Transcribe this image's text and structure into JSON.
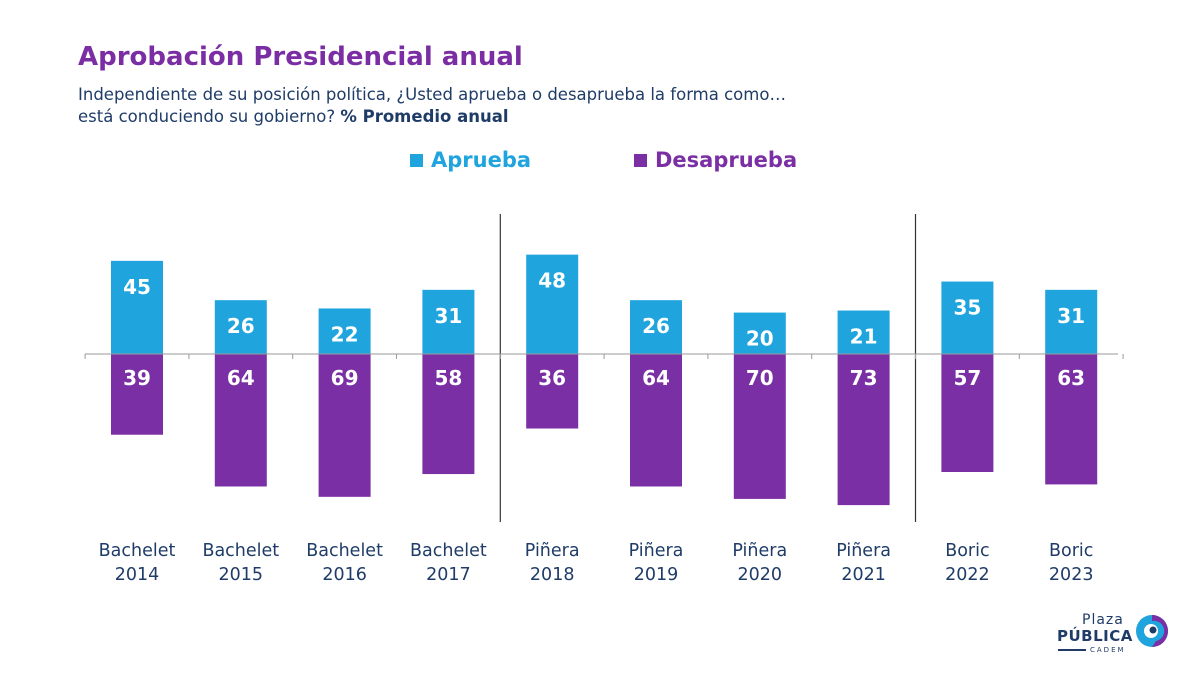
{
  "title": "Aprobación Presidencial anual",
  "subtitle_line1": "Independiente de su posición política, ¿Usted aprueba o desaprueba la forma como…",
  "subtitle_line2": "está conduciendo su gobierno?",
  "subtitle_bold": "% Promedio anual",
  "legend": [
    {
      "label": "Aprueba",
      "color": "#1fa4dd"
    },
    {
      "label": "Desaprueba",
      "color": "#7a2fa4"
    }
  ],
  "logo": {
    "line1": "Plaza",
    "line2": "PÚBLICA",
    "line3": "CADEM"
  },
  "chart_data": {
    "type": "bar",
    "categories": [
      [
        "Bachelet",
        "2014"
      ],
      [
        "Bachelet",
        "2015"
      ],
      [
        "Bachelet",
        "2016"
      ],
      [
        "Bachelet",
        "2017"
      ],
      [
        "Piñera",
        "2018"
      ],
      [
        "Piñera",
        "2019"
      ],
      [
        "Piñera",
        "2020"
      ],
      [
        "Piñera",
        "2021"
      ],
      [
        "Boric",
        "2022"
      ],
      [
        "Boric",
        "2023"
      ]
    ],
    "series": [
      {
        "name": "Aprueba",
        "color": "#1fa4dd",
        "direction": "up",
        "values": [
          45,
          26,
          22,
          31,
          48,
          26,
          20,
          21,
          35,
          31
        ]
      },
      {
        "name": "Desaprueba",
        "color": "#7a2fa4",
        "direction": "down",
        "values": [
          39,
          64,
          69,
          58,
          36,
          64,
          70,
          73,
          57,
          63
        ]
      }
    ],
    "group_dividers_after": [
      3,
      7
    ],
    "data_labels": true,
    "grid": false
  }
}
